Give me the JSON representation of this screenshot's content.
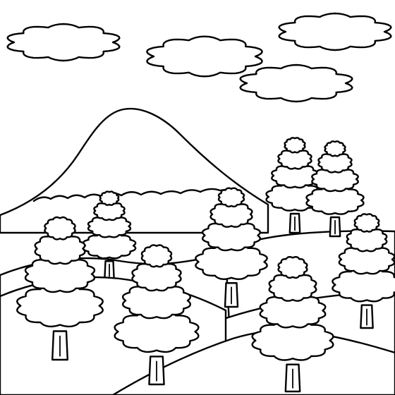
{
  "scene": {
    "description_free": true,
    "colors": {
      "line": "#000000",
      "paper": "#ffffff"
    }
  }
}
